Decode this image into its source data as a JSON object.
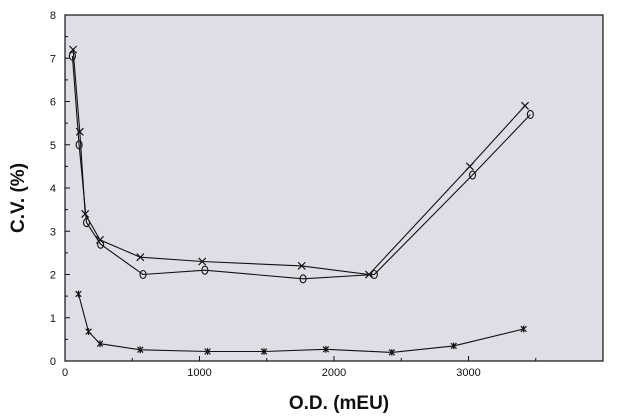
{
  "chart_data": {
    "type": "line",
    "xlabel": "O.D. (mEU)",
    "ylabel": "C.V. (%)",
    "xlim": [
      0,
      4000
    ],
    "ylim": [
      0,
      8
    ],
    "x_ticks": [
      0,
      1000,
      2000,
      3000
    ],
    "y_ticks": [
      0,
      1,
      2,
      3,
      4,
      5,
      6,
      7,
      8
    ],
    "grid": false,
    "plot_background": "#dedee6",
    "line_color": "#111111",
    "series": [
      {
        "marker": "x",
        "x": [
          60,
          110,
          150,
          260,
          560,
          1020,
          1760,
          2260,
          3010,
          3420
        ],
        "y": [
          7.2,
          5.3,
          3.4,
          2.8,
          2.4,
          2.3,
          2.2,
          2.0,
          4.5,
          5.9
        ]
      },
      {
        "marker": "o",
        "x": [
          55,
          105,
          160,
          265,
          580,
          1040,
          1770,
          2300,
          3030,
          3460
        ],
        "y": [
          7.05,
          5.0,
          3.2,
          2.7,
          2.0,
          2.1,
          1.9,
          2.0,
          4.3,
          5.7
        ]
      },
      {
        "marker": "*",
        "x": [
          100,
          175,
          260,
          560,
          1060,
          1480,
          1940,
          2430,
          2890,
          3410
        ],
        "y": [
          1.55,
          0.68,
          0.4,
          0.26,
          0.22,
          0.22,
          0.27,
          0.2,
          0.35,
          0.74
        ]
      }
    ]
  }
}
